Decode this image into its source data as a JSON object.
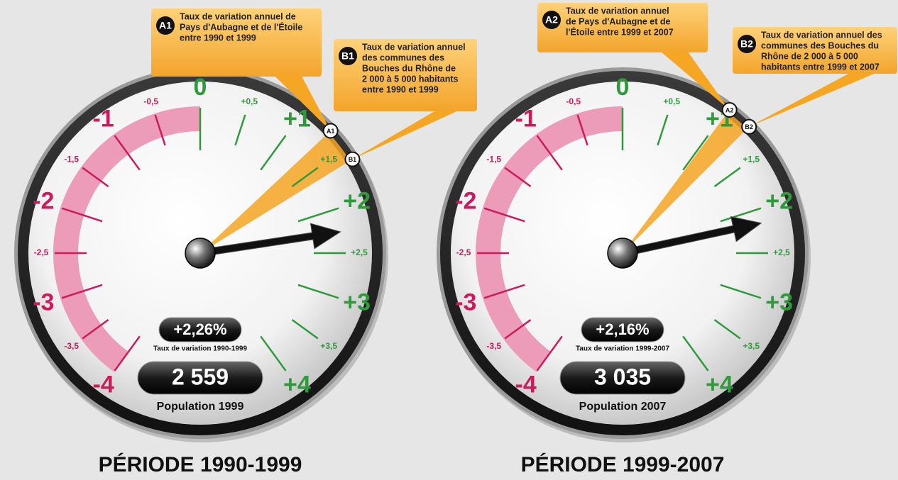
{
  "chart_data": [
    {
      "type": "gauge",
      "title": "Période 1990-1999",
      "ylim": [
        -4,
        4
      ],
      "yticks": [
        {
          "value": -4,
          "label": "-4"
        },
        {
          "value": -3.5,
          "label": "-3,5"
        },
        {
          "value": -3,
          "label": "-3"
        },
        {
          "value": -2.5,
          "label": "-2,5"
        },
        {
          "value": -2,
          "label": "-2"
        },
        {
          "value": -1.5,
          "label": "-1,5"
        },
        {
          "value": -1,
          "label": "-1"
        },
        {
          "value": -0.5,
          "label": "-0,5"
        },
        0,
        {
          "value": 0.5,
          "label": "+0,5"
        },
        {
          "value": 1,
          "label": "+1"
        },
        {
          "value": 1.5,
          "label": "+1,5"
        },
        {
          "value": 2,
          "label": "+2"
        },
        {
          "value": 2.5,
          "label": "+2,5"
        },
        {
          "value": 3,
          "label": "+3"
        },
        {
          "value": 3.5,
          "label": "+3,5"
        },
        {
          "value": 4,
          "label": "+4"
        }
      ],
      "negative_color": "#cc1a5c",
      "positive_color": "#2f9a3c",
      "band_color": "#ec9bb8",
      "value": 2.26,
      "value_label": "+2,26%",
      "value_caption": "Taux de variation 1990-1999",
      "population": "2 559",
      "population_caption": "Population 1999",
      "markers": [
        {
          "id": "A1",
          "value": 1.3,
          "lines": [
            "Taux de variation annuel de",
            "Pays d'Aubagne et de l'Étoile",
            "entre 1990 et 1999"
          ]
        },
        {
          "id": "B1",
          "value": 1.62,
          "lines": [
            "Taux de variation annuel",
            "des communes des",
            "Bouches du Rhône de",
            "2 000 à 5 000 habitants",
            "entre 1990 et 1999"
          ]
        }
      ]
    },
    {
      "type": "gauge",
      "title": "Période 1999-2007",
      "ylim": [
        -4,
        4
      ],
      "yticks": [
        {
          "value": -4,
          "label": "-4"
        },
        {
          "value": -3.5,
          "label": "-3,5"
        },
        {
          "value": -3,
          "label": "-3"
        },
        {
          "value": -2.5,
          "label": "-2,5"
        },
        {
          "value": -2,
          "label": "-2"
        },
        {
          "value": -1.5,
          "label": "-1,5"
        },
        {
          "value": -1,
          "label": "-1"
        },
        {
          "value": -0.5,
          "label": "-0,5"
        },
        0,
        {
          "value": 0.5,
          "label": "+0,5"
        },
        {
          "value": 1,
          "label": "+1"
        },
        {
          "value": 1.5,
          "label": "+1,5"
        },
        {
          "value": 2,
          "label": "+2"
        },
        {
          "value": 2.5,
          "label": "+2,5"
        },
        {
          "value": 3,
          "label": "+3"
        },
        {
          "value": 3.5,
          "label": "+3,5"
        },
        {
          "value": 4,
          "label": "+4"
        }
      ],
      "negative_color": "#cc1a5c",
      "positive_color": "#2f9a3c",
      "band_color": "#ec9bb8",
      "value": 2.16,
      "value_label": "+2,16%",
      "value_caption": "Taux de variation 1999-2007",
      "population": "3 035",
      "population_caption": "Population 2007",
      "markers": [
        {
          "id": "A2",
          "value": 1.02,
          "lines": [
            "Taux de variation annuel",
            "de Pays d'Aubagne et de",
            "l'Étoile entre 1999 et 2007"
          ]
        },
        {
          "id": "B2",
          "value": 1.25,
          "lines": [
            "Taux de variation annuel des",
            "communes des Bouches du",
            "Rhône de 2 000 à 5 000",
            "habitants entre 1999 et 2007"
          ]
        }
      ]
    }
  ]
}
